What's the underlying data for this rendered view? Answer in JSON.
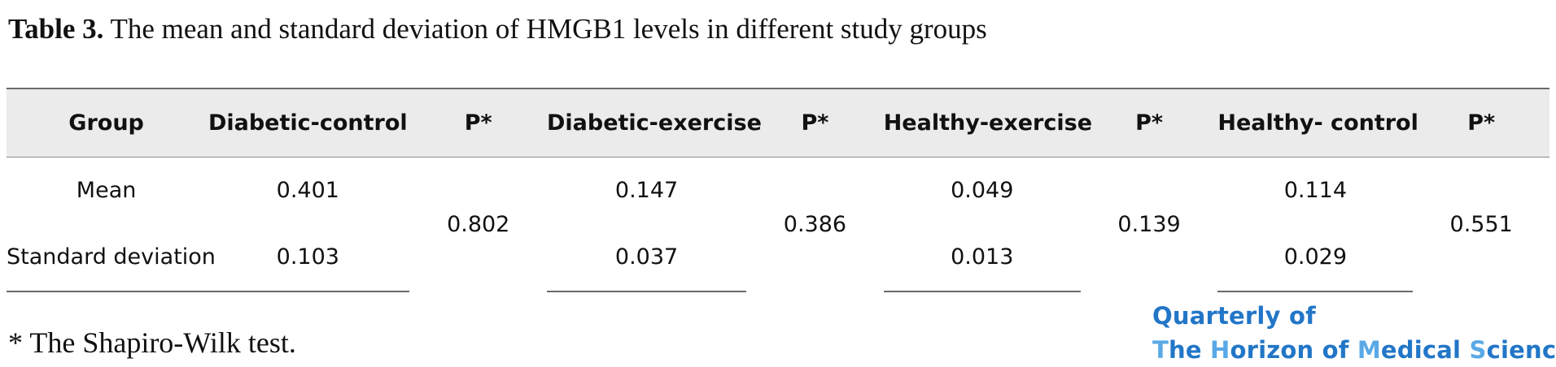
{
  "caption": {
    "label": "Table 3.",
    "text": " The mean and standard deviation of HMGB1 levels in different study groups"
  },
  "table": {
    "headers": [
      "Group",
      "Diabetic-control",
      "P*",
      "Diabetic-exercise",
      "P*",
      "Healthy-exercise",
      "P*",
      "Healthy- control",
      "P*"
    ],
    "rows": [
      {
        "label": "Mean",
        "values": [
          "0.401",
          "0.147",
          "0.049",
          "0.114"
        ]
      },
      {
        "label": "Standard deviation",
        "values": [
          "0.103",
          "0.037",
          "0.013",
          "0.029"
        ]
      }
    ],
    "p_values": [
      "0.802",
      "0.386",
      "0.139",
      "0.551"
    ]
  },
  "footnote": "* The Shapiro-Wilk test.",
  "journal": {
    "line1": "Quarterly of",
    "line2": "The Horizon of Medical Sciences",
    "color": "#2276c7",
    "highlight_color": "#5aa9e6"
  }
}
